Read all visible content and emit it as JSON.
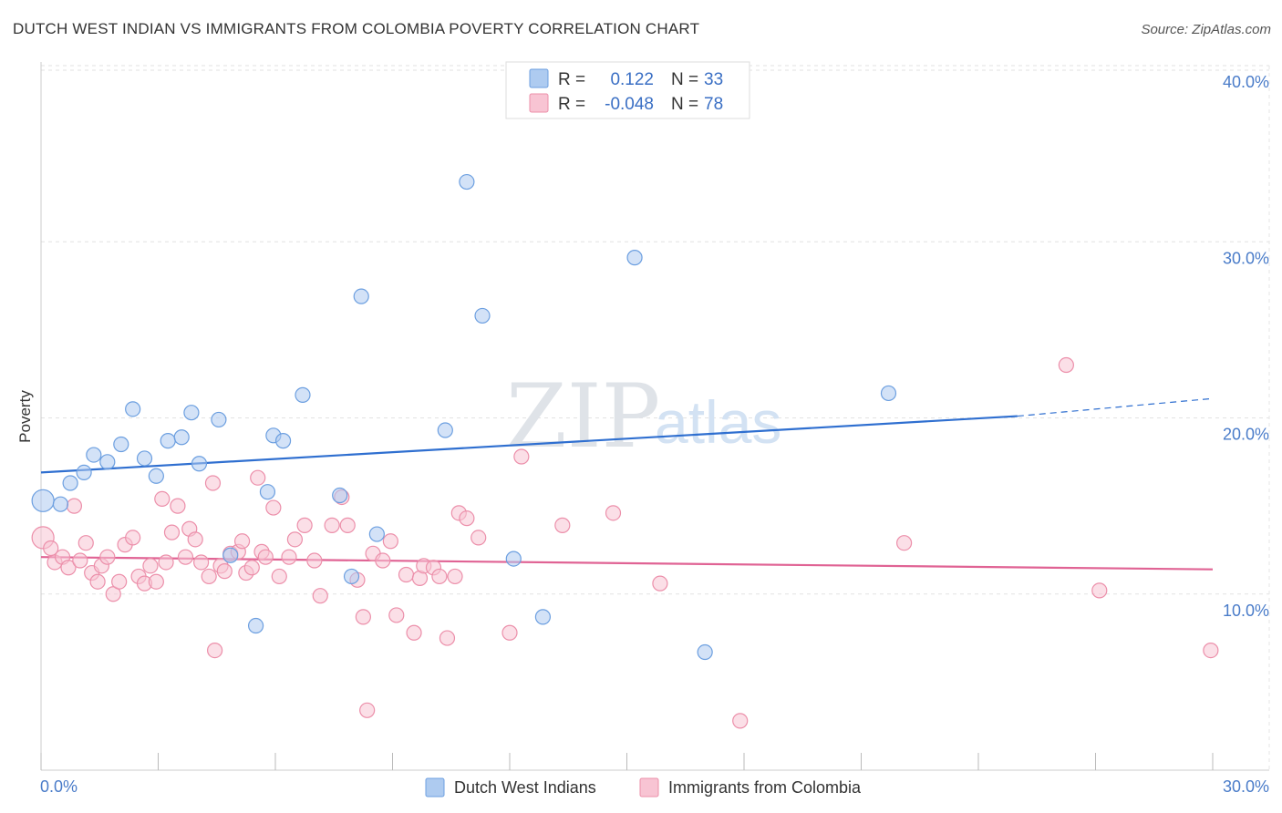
{
  "header": {
    "title": "DUTCH WEST INDIAN VS IMMIGRANTS FROM COLOMBIA POVERTY CORRELATION CHART",
    "source": "Source: ZipAtlas.com"
  },
  "watermark": {
    "part1": "ZIP",
    "part2": "atlas"
  },
  "legend": {
    "r_label": "R =",
    "n_label": "N =",
    "rows": [
      {
        "r": "0.122",
        "n": "33",
        "color": "#aecbf0",
        "stroke": "#6c9fe0"
      },
      {
        "r": "-0.048",
        "n": "78",
        "color": "#f8c4d3",
        "stroke": "#ec8faa"
      }
    ]
  },
  "bottom_legend": [
    "Dutch West Indians",
    "Immigrants from Colombia"
  ],
  "chart_data": {
    "type": "scatter",
    "title": "DUTCH WEST INDIAN VS IMMIGRANTS FROM COLOMBIA POVERTY CORRELATION CHART",
    "ylabel": "Poverty",
    "xlabel": "",
    "xlim": [
      0,
      30
    ],
    "ylim": [
      0,
      40
    ],
    "x_tick_labels": [
      "0.0%",
      "30.0%"
    ],
    "y_tick_labels": [
      "10.0%",
      "20.0%",
      "30.0%",
      "40.0%"
    ],
    "y_ticks": [
      10,
      20,
      30,
      40
    ],
    "grid": true,
    "legend_position": "top-center",
    "series": [
      {
        "name": "Dutch West Indians",
        "color": "#6c9fe0",
        "fill": "#aecbf0",
        "trend": {
          "x0": 0,
          "y0": 16.9,
          "x1": 25,
          "y1": 20.1,
          "dashed_to": 30,
          "dashed_y": 21.1
        },
        "points": [
          [
            0.05,
            15.3
          ],
          [
            0.5,
            15.1
          ],
          [
            0.75,
            16.3
          ],
          [
            1.1,
            16.9
          ],
          [
            1.35,
            17.9
          ],
          [
            1.7,
            17.5
          ],
          [
            2.05,
            18.5
          ],
          [
            2.35,
            20.5
          ],
          [
            2.65,
            17.7
          ],
          [
            2.95,
            16.7
          ],
          [
            3.25,
            18.7
          ],
          [
            3.6,
            18.9
          ],
          [
            3.85,
            20.3
          ],
          [
            4.05,
            17.4
          ],
          [
            4.55,
            19.9
          ],
          [
            4.85,
            12.2
          ],
          [
            5.5,
            8.2
          ],
          [
            5.8,
            15.8
          ],
          [
            5.95,
            19.0
          ],
          [
            6.2,
            18.7
          ],
          [
            6.7,
            21.3
          ],
          [
            7.65,
            15.6
          ],
          [
            7.95,
            11.0
          ],
          [
            8.2,
            26.9
          ],
          [
            8.6,
            13.4
          ],
          [
            10.35,
            19.3
          ],
          [
            10.9,
            33.4
          ],
          [
            11.3,
            25.8
          ],
          [
            12.1,
            12.0
          ],
          [
            12.85,
            8.7
          ],
          [
            15.2,
            29.1
          ],
          [
            17.0,
            6.7
          ],
          [
            21.7,
            21.4
          ]
        ]
      },
      {
        "name": "Immigrants from Colombia",
        "color": "#ec8faa",
        "fill": "#f8c4d3",
        "trend": {
          "x0": 0,
          "y0": 12.1,
          "x1": 30,
          "y1": 11.4
        },
        "points": [
          [
            0.05,
            13.2
          ],
          [
            0.25,
            12.6
          ],
          [
            0.35,
            11.8
          ],
          [
            0.55,
            12.1
          ],
          [
            0.7,
            11.5
          ],
          [
            0.85,
            15.0
          ],
          [
            1.0,
            11.9
          ],
          [
            1.15,
            12.9
          ],
          [
            1.3,
            11.2
          ],
          [
            1.45,
            10.7
          ],
          [
            1.55,
            11.6
          ],
          [
            1.7,
            12.1
          ],
          [
            1.85,
            10.0
          ],
          [
            2.0,
            10.7
          ],
          [
            2.15,
            12.8
          ],
          [
            2.35,
            13.2
          ],
          [
            2.5,
            11.0
          ],
          [
            2.65,
            10.6
          ],
          [
            2.8,
            11.6
          ],
          [
            2.95,
            10.7
          ],
          [
            3.1,
            15.4
          ],
          [
            3.2,
            11.8
          ],
          [
            3.35,
            13.5
          ],
          [
            3.5,
            15.0
          ],
          [
            3.7,
            12.1
          ],
          [
            3.8,
            13.7
          ],
          [
            3.95,
            13.1
          ],
          [
            4.1,
            11.8
          ],
          [
            4.3,
            11.0
          ],
          [
            4.4,
            16.3
          ],
          [
            4.45,
            6.8
          ],
          [
            4.6,
            11.6
          ],
          [
            4.7,
            11.3
          ],
          [
            4.85,
            12.3
          ],
          [
            5.05,
            12.4
          ],
          [
            5.15,
            13.0
          ],
          [
            5.25,
            11.2
          ],
          [
            5.4,
            11.5
          ],
          [
            5.55,
            16.6
          ],
          [
            5.65,
            12.4
          ],
          [
            5.75,
            12.1
          ],
          [
            5.95,
            14.9
          ],
          [
            6.1,
            11.0
          ],
          [
            6.35,
            12.1
          ],
          [
            6.5,
            13.1
          ],
          [
            6.75,
            13.9
          ],
          [
            7.0,
            11.9
          ],
          [
            7.15,
            9.9
          ],
          [
            7.45,
            13.9
          ],
          [
            7.7,
            15.5
          ],
          [
            7.85,
            13.9
          ],
          [
            8.1,
            10.8
          ],
          [
            8.25,
            8.7
          ],
          [
            8.35,
            3.4
          ],
          [
            8.5,
            12.3
          ],
          [
            8.75,
            11.9
          ],
          [
            8.95,
            13.0
          ],
          [
            9.1,
            8.8
          ],
          [
            9.35,
            11.1
          ],
          [
            9.55,
            7.8
          ],
          [
            9.7,
            10.9
          ],
          [
            9.8,
            11.6
          ],
          [
            10.05,
            11.5
          ],
          [
            10.2,
            11.0
          ],
          [
            10.4,
            7.5
          ],
          [
            10.6,
            11.0
          ],
          [
            10.7,
            14.6
          ],
          [
            10.9,
            14.3
          ],
          [
            11.2,
            13.2
          ],
          [
            12.0,
            7.8
          ],
          [
            12.3,
            17.8
          ],
          [
            13.35,
            13.9
          ],
          [
            14.65,
            14.6
          ],
          [
            15.85,
            10.6
          ],
          [
            17.9,
            2.8
          ],
          [
            22.1,
            12.9
          ],
          [
            26.25,
            23.0
          ],
          [
            27.1,
            10.2
          ],
          [
            29.95,
            6.8
          ]
        ]
      }
    ]
  }
}
